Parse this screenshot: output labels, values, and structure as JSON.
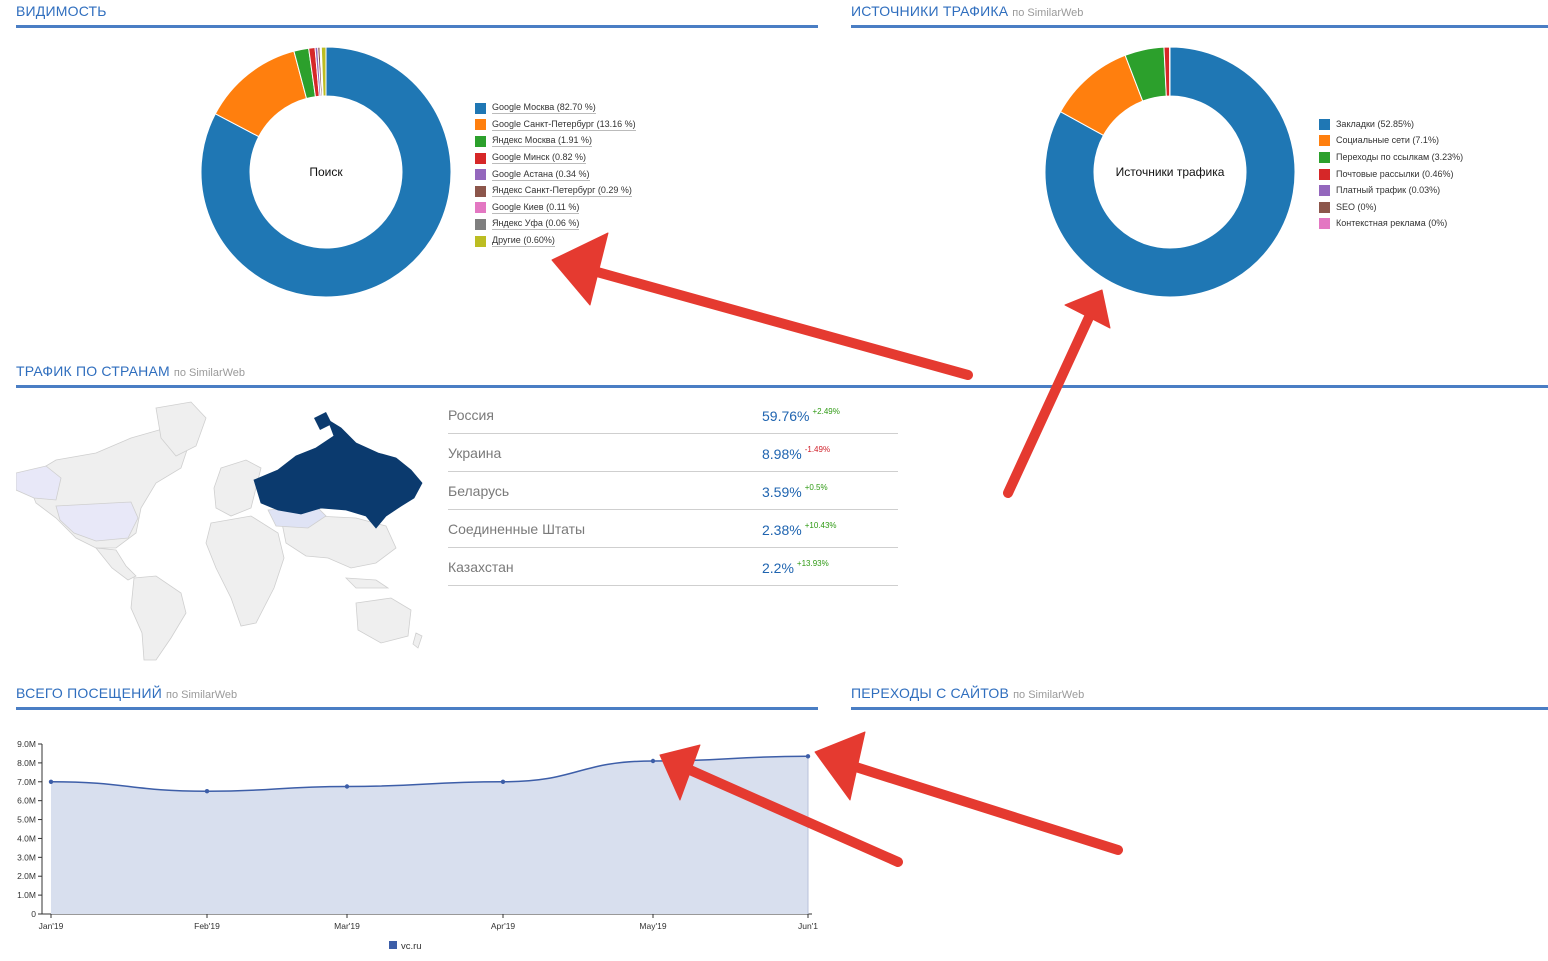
{
  "sections": {
    "visibility": {
      "title": "ВИДИМОСТЬ",
      "sub": ""
    },
    "traffic_sources": {
      "title": "ИСТОЧНИКИ ТРАФИКА",
      "sub": "по SimilarWeb"
    },
    "traffic_by_country": {
      "title": "ТРАФИК ПО СТРАНАМ",
      "sub": "по SimilarWeb"
    },
    "total_visits": {
      "title": "ВСЕГО ПОСЕЩЕНИЙ",
      "sub": "по SimilarWeb"
    },
    "referrals": {
      "title": "ПЕРЕХОДЫ С САЙТОВ",
      "sub": "по SimilarWeb"
    }
  },
  "colors": {
    "accent": "#4a7ec4",
    "arrow": "#e53a30",
    "area": "#d8dfee",
    "line": "#3d5ea8"
  },
  "chart_data": [
    {
      "type": "pie",
      "center_label": "Поиск",
      "slices": [
        {
          "label": "Google Москва (82.70 %)",
          "value": 82.7,
          "color": "#1f77b4"
        },
        {
          "label": "Google Санкт-Петербург (13.16 %)",
          "value": 13.16,
          "color": "#ff7f0e"
        },
        {
          "label": "Яндекс Москва (1.91 %)",
          "value": 1.91,
          "color": "#2ca02c"
        },
        {
          "label": "Google Минск (0.82 %)",
          "value": 0.82,
          "color": "#d62728"
        },
        {
          "label": "Google Астана (0.34 %)",
          "value": 0.34,
          "color": "#9467bd"
        },
        {
          "label": "Яндекс Санкт-Петербург (0.29 %)",
          "value": 0.29,
          "color": "#8c564b"
        },
        {
          "label": "Google Киев (0.11 %)",
          "value": 0.11,
          "color": "#e377c2"
        },
        {
          "label": "Яндекс Уфа (0.06 %)",
          "value": 0.06,
          "color": "#7f7f7f"
        },
        {
          "label": "Другие (0.60%)",
          "value": 0.6,
          "color": "#bcbd22"
        }
      ]
    },
    {
      "type": "pie",
      "center_label": "Источники трафика",
      "slices": [
        {
          "label": "Закладки (52.85%)",
          "value": 52.85,
          "color": "#1f77b4"
        },
        {
          "label": "Социальные сети (7.1%)",
          "value": 7.1,
          "color": "#ff7f0e"
        },
        {
          "label": "Переходы по ссылкам (3.23%)",
          "value": 3.23,
          "color": "#2ca02c"
        },
        {
          "label": "Почтовые рассылки (0.46%)",
          "value": 0.46,
          "color": "#d62728"
        },
        {
          "label": "Платный трафик (0.03%)",
          "value": 0.03,
          "color": "#9467bd"
        },
        {
          "label": "SEO (0%)",
          "value": 0,
          "color": "#8c564b"
        },
        {
          "label": "Контекстная реклама (0%)",
          "value": 0,
          "color": "#e377c2"
        }
      ]
    },
    {
      "type": "area",
      "categories": [
        "Jan'19",
        "Feb'19",
        "Mar'19",
        "Apr'19",
        "May'19",
        "Jun'1"
      ],
      "yticks": [
        "0",
        "1.0M",
        "2.0M",
        "3.0M",
        "4.0M",
        "5.0M",
        "6.0M",
        "7.0M",
        "8.0M",
        "9.0M"
      ],
      "ylim": [
        0,
        9000000
      ],
      "series": [
        {
          "name": "vc.ru",
          "values": [
            7000000,
            6500000,
            6750000,
            7000000,
            8100000,
            8350000
          ]
        }
      ],
      "legend": "bottom",
      "grid": false
    }
  ],
  "countries": [
    {
      "name": "Россия",
      "value": "59.76%",
      "delta": "+2.49%",
      "dir": "up"
    },
    {
      "name": "Украина",
      "value": "8.98%",
      "delta": "-1.49%",
      "dir": "down"
    },
    {
      "name": "Беларусь",
      "value": "3.59%",
      "delta": "+0.5%",
      "dir": "up"
    },
    {
      "name": "Соединенные Штаты",
      "value": "2.38%",
      "delta": "+10.43%",
      "dir": "up"
    },
    {
      "name": "Казахстан",
      "value": "2.2%",
      "delta": "+13.93%",
      "dir": "up"
    }
  ]
}
